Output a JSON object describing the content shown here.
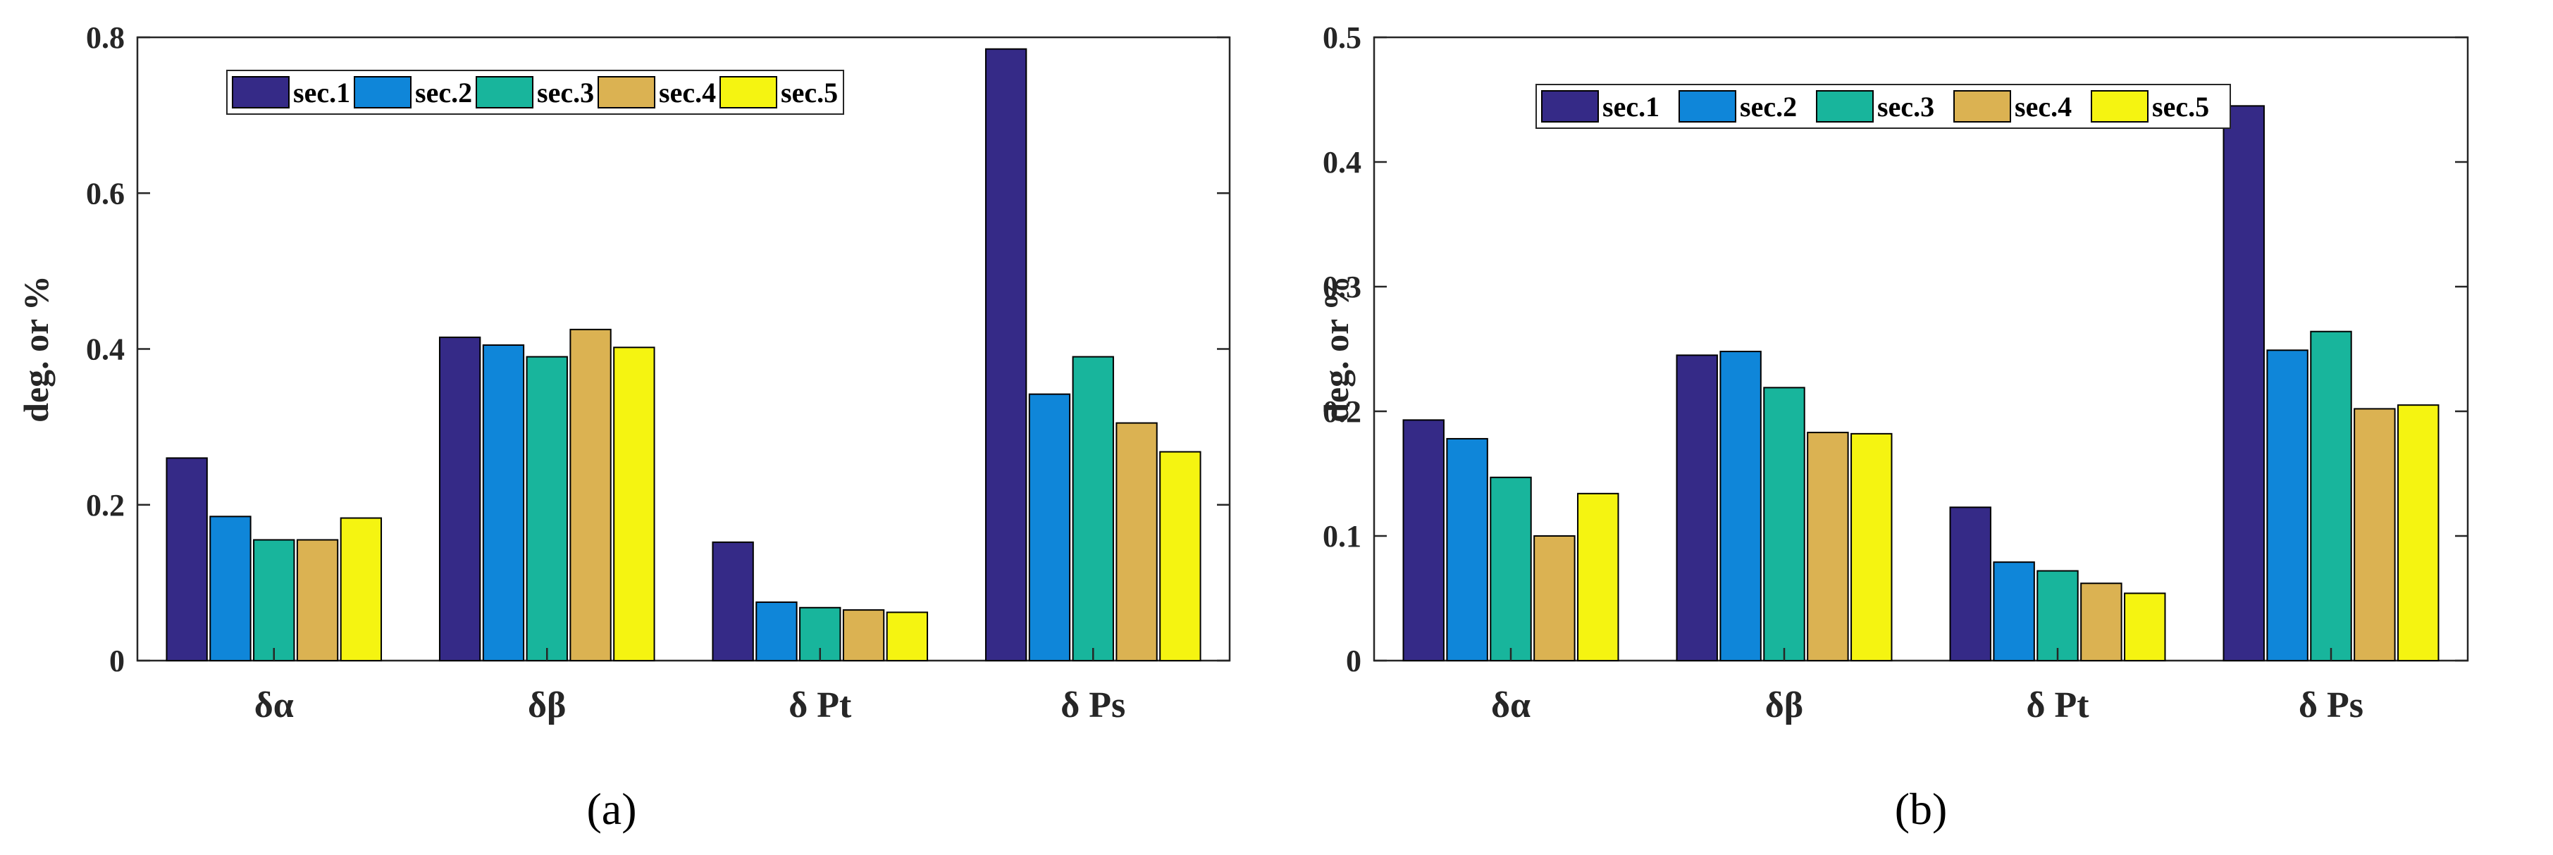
{
  "figure": {
    "colors": [
      "#352a87",
      "#0f86d9",
      "#18b59c",
      "#dbb252",
      "#f5f411"
    ],
    "panels": [
      {
        "caption": "(a)"
      },
      {
        "caption": "(b)"
      }
    ]
  },
  "chart_data": [
    {
      "type": "bar",
      "panel": "(a)",
      "categories": [
        "δα",
        "δβ",
        "δ Pt",
        "δ Ps"
      ],
      "series": [
        {
          "name": "sec.1",
          "values": [
            0.26,
            0.415,
            0.152,
            0.785
          ]
        },
        {
          "name": "sec.2",
          "values": [
            0.185,
            0.405,
            0.075,
            0.342
          ]
        },
        {
          "name": "sec.3",
          "values": [
            0.155,
            0.39,
            0.068,
            0.39
          ]
        },
        {
          "name": "sec.4",
          "values": [
            0.155,
            0.425,
            0.065,
            0.305
          ]
        },
        {
          "name": "sec.5",
          "values": [
            0.183,
            0.402,
            0.062,
            0.268
          ]
        }
      ],
      "ylabel": "deg. or %",
      "xlabel": "",
      "ylim": [
        0,
        0.8
      ],
      "yticks": [
        "0",
        "0.2",
        "0.4",
        "0.6",
        "0.8"
      ],
      "legend_position": "top-left"
    },
    {
      "type": "bar",
      "panel": "(b)",
      "categories": [
        "δα",
        "δβ",
        "δ Pt",
        "δ Ps"
      ],
      "series": [
        {
          "name": "sec.1",
          "values": [
            0.193,
            0.245,
            0.123,
            0.445
          ]
        },
        {
          "name": "sec.2",
          "values": [
            0.178,
            0.248,
            0.079,
            0.249
          ]
        },
        {
          "name": "sec.3",
          "values": [
            0.147,
            0.219,
            0.072,
            0.264
          ]
        },
        {
          "name": "sec.4",
          "values": [
            0.1,
            0.183,
            0.062,
            0.202
          ]
        },
        {
          "name": "sec.5",
          "values": [
            0.134,
            0.182,
            0.054,
            0.205
          ]
        }
      ],
      "ylabel": "deg. or %",
      "xlabel": "",
      "ylim": [
        0,
        0.5
      ],
      "yticks": [
        "0",
        "0.1",
        "0.2",
        "0.3",
        "0.4",
        "0.5"
      ],
      "legend_position": "top-left"
    }
  ]
}
